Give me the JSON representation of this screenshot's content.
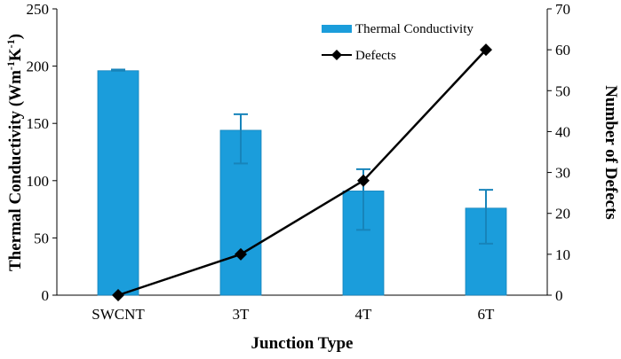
{
  "chart_data": {
    "type": "bar+line",
    "categories": [
      "SWCNT",
      "3T",
      "4T",
      "6T"
    ],
    "xlabel": "Junction Type",
    "ylabel_left": {
      "main": "Thermal Conductivity (Wm",
      "sup1": "-1",
      "mid": "K",
      "sup2": "-1",
      "end": ")"
    },
    "ylabel_right": "Number of Defects",
    "ylim_left": [
      0,
      250
    ],
    "ylim_right": [
      0,
      70
    ],
    "yticks_left": [
      0,
      50,
      100,
      150,
      200,
      250
    ],
    "yticks_right": [
      0,
      10,
      20,
      30,
      40,
      50,
      60,
      70
    ],
    "series": [
      {
        "name": "Thermal Conductivity",
        "type": "bar",
        "axis": "left",
        "values": [
          196,
          144,
          91,
          76
        ],
        "error_low": [
          196,
          115,
          57,
          45
        ],
        "error_high": [
          197,
          158,
          110,
          92
        ],
        "color": "#1B9DDB"
      },
      {
        "name": "Defects",
        "type": "line",
        "axis": "right",
        "values": [
          0,
          10,
          28,
          60
        ],
        "color": "#000000",
        "marker": "diamond"
      }
    ],
    "legend_position": "top-right"
  }
}
